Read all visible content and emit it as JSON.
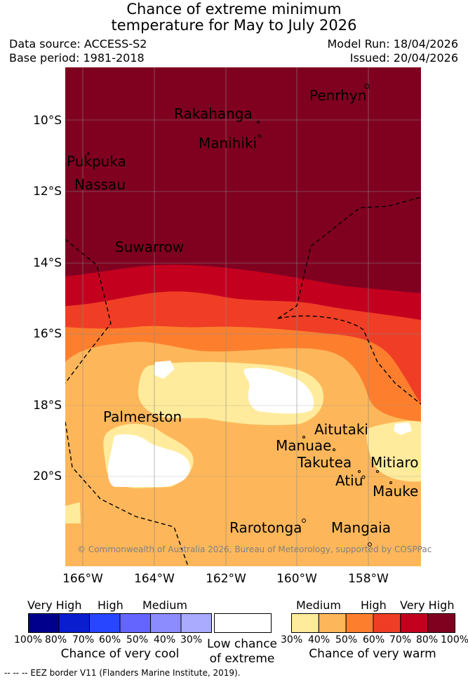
{
  "title_line1": "Chance of extreme minimum",
  "title_line2": "temperature for May to July 2026",
  "data_source": "Data source: ACCESS-S2",
  "base_period": "Base period: 1981-2018",
  "model_run": "Model Run: 18/04/2026",
  "issued": "Issued: 20/04/2026",
  "map": {
    "lat_labels": [
      "10°S",
      "12°S",
      "14°S",
      "16°S",
      "18°S",
      "20°S"
    ],
    "lon_labels": [
      "166°W",
      "164°W",
      "162°W",
      "160°W",
      "158°W"
    ],
    "places": {
      "penrhyn": "Penrhyn",
      "rakahanga": "Rakahanga",
      "manihiki": "Manihiki",
      "pukapuka": "Pukpuka",
      "nassau": "Nassau",
      "suwarrow": "Suwarrow",
      "palmerston": "Palmerston",
      "aitutaki": "Aitutaki",
      "manuae": "Manuae",
      "takutea": "Takutea",
      "mitiaro": "Mitiaro",
      "atiu": "Atiu",
      "mauke": "Mauke",
      "rarotonga": "Rarotonga",
      "mangaia": "Mangaia"
    },
    "copyright": "© Commonwealth of Australia 2026, Bureau of Meteorology, supported by COSPPac"
  },
  "legend": {
    "cool": {
      "heads": [
        "Very High",
        "High",
        "Medium"
      ],
      "ticks": [
        "100%",
        "80%",
        "70%",
        "60%",
        "50%",
        "40%",
        "30%"
      ],
      "colors": [
        "#00008c",
        "#0a1ed0",
        "#2846ff",
        "#6464ff",
        "#8c8cff",
        "#aaaaff"
      ],
      "caption": "Chance of very cool"
    },
    "neutral": {
      "caption1": "Low chance",
      "caption2": "of extreme"
    },
    "warm": {
      "heads": [
        "Medium",
        "High",
        "Very High"
      ],
      "ticks": [
        "30%",
        "40%",
        "50%",
        "60%",
        "70%",
        "80%",
        "100%"
      ],
      "colors": [
        "#ffeb9b",
        "#fdb75a",
        "#fd7f2e",
        "#ef3e25",
        "#c4001f",
        "#800020"
      ],
      "caption": "Chance of very warm"
    },
    "eez": "-- -- -- EEZ border V11 (Flanders Marine Institute, 2019)."
  }
}
